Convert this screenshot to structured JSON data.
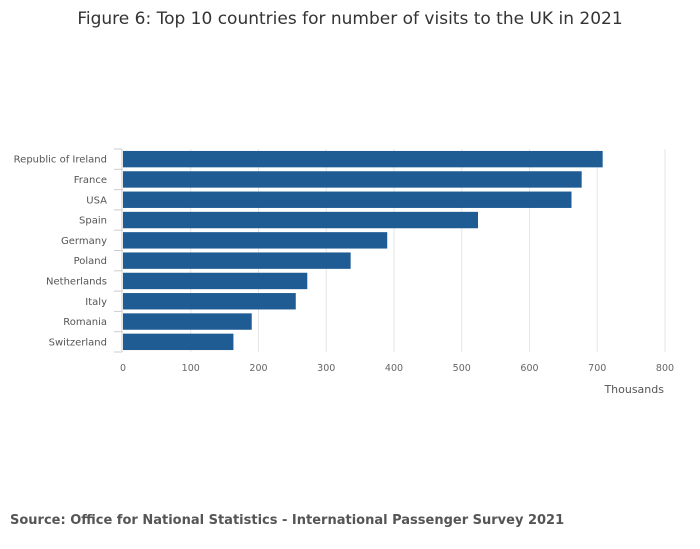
{
  "chart_data": {
    "type": "bar",
    "orientation": "horizontal",
    "title": "Figure 6: Top 10 countries for number of visits to the UK in 2021",
    "categories": [
      "Republic of Ireland",
      "France",
      "USA",
      "Spain",
      "Germany",
      "Poland",
      "Netherlands",
      "Italy",
      "Romania",
      "Switzerland"
    ],
    "values": [
      708,
      677,
      662,
      524,
      390,
      336,
      272,
      255,
      190,
      163
    ],
    "xlabel": "Thousands",
    "ylabel": "",
    "xlim": [
      0,
      800
    ],
    "xticks": [
      0,
      100,
      200,
      300,
      400,
      500,
      600,
      700,
      800
    ],
    "grid": true,
    "bar_color": "#1f5c94",
    "grid_color": "#e6e6e6",
    "axis_color": "#cccccc"
  },
  "footer": {
    "source": "Source: Office for National Statistics - International Passenger Survey 2021"
  }
}
